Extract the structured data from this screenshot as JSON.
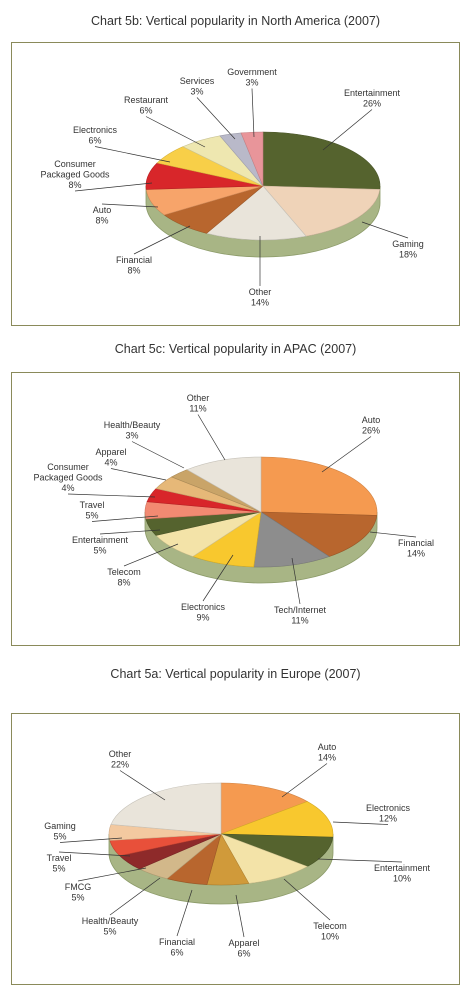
{
  "chart_data": [
    {
      "type": "pie",
      "title": "Chart 5b: Vertical popularity in North America (2007)",
      "series": [
        {
          "values": [
            26,
            18,
            14,
            8,
            8,
            8,
            6,
            6,
            3,
            3
          ]
        }
      ],
      "categories": [
        "Entertainment",
        "Gaming",
        "Other",
        "Financial",
        "Auto",
        "Consumer Packaged Goods",
        "Electronics",
        "Restaurant",
        "Services",
        "Government"
      ],
      "labels": [
        {
          "lines": [
            "Entertainment",
            "26%"
          ]
        },
        {
          "lines": [
            "Gaming",
            "18%"
          ]
        },
        {
          "lines": [
            "Other",
            "14%"
          ]
        },
        {
          "lines": [
            "Financial",
            "8%"
          ]
        },
        {
          "lines": [
            "Auto",
            "8%"
          ]
        },
        {
          "lines": [
            "Consumer",
            "Packaged Goods",
            "8%"
          ]
        },
        {
          "lines": [
            "Electronics",
            "6%"
          ]
        },
        {
          "lines": [
            "Restaurant",
            "6%"
          ]
        },
        {
          "lines": [
            "Services",
            "3%"
          ]
        },
        {
          "lines": [
            "Government",
            "3%"
          ]
        }
      ],
      "colors": [
        "#55632e",
        "#efd3b8",
        "#e9e4da",
        "#b8662e",
        "#f7a46a",
        "#d8262a",
        "#f8cf48",
        "#eee7b0",
        "#b9b9c9",
        "#e8959a"
      ]
    },
    {
      "type": "pie",
      "title": "Chart 5c: Vertical popularity in APAC (2007)",
      "series": [
        {
          "values": [
            26,
            14,
            11,
            9,
            8,
            5,
            5,
            4,
            4,
            3,
            11
          ]
        }
      ],
      "categories": [
        "Auto",
        "Financial",
        "Tech/Internet",
        "Electronics",
        "Telecom",
        "Entertainment",
        "Travel",
        "Consumer Packaged Goods",
        "Apparel",
        "Health/Beauty",
        "Other"
      ],
      "labels": [
        {
          "lines": [
            "Auto",
            "26%"
          ]
        },
        {
          "lines": [
            "Financial",
            "14%"
          ]
        },
        {
          "lines": [
            "Tech/Internet",
            "11%"
          ]
        },
        {
          "lines": [
            "Electronics",
            "9%"
          ]
        },
        {
          "lines": [
            "Telecom",
            "8%"
          ]
        },
        {
          "lines": [
            "Entertainment",
            "5%"
          ]
        },
        {
          "lines": [
            "Travel",
            "5%"
          ]
        },
        {
          "lines": [
            "Consumer",
            "Packaged Goods",
            "4%"
          ]
        },
        {
          "lines": [
            "Apparel",
            "4%"
          ]
        },
        {
          "lines": [
            "Health/Beauty",
            "3%"
          ]
        },
        {
          "lines": [
            "Other",
            "11%"
          ]
        }
      ],
      "colors": [
        "#f59a50",
        "#b8662e",
        "#8d8d8d",
        "#f8c82e",
        "#f3e3a8",
        "#55632e",
        "#f28a72",
        "#d8262a",
        "#e6b878",
        "#c9a468",
        "#e9e4da"
      ]
    },
    {
      "type": "pie",
      "title": "Chart 5a: Vertical popularity in Europe (2007)",
      "series": [
        {
          "values": [
            14,
            12,
            10,
            10,
            6,
            6,
            5,
            5,
            5,
            5,
            22
          ]
        }
      ],
      "categories": [
        "Auto",
        "Electronics",
        "Entertainment",
        "Telecom",
        "Apparel",
        "Financial",
        "Health/Beauty",
        "FMCG",
        "Travel",
        "Gaming",
        "Other"
      ],
      "labels": [
        {
          "lines": [
            "Auto",
            "14%"
          ]
        },
        {
          "lines": [
            "Electronics",
            "12%"
          ]
        },
        {
          "lines": [
            "Entertainment",
            "10%"
          ]
        },
        {
          "lines": [
            "Telecom",
            "10%"
          ]
        },
        {
          "lines": [
            "Apparel",
            "6%"
          ]
        },
        {
          "lines": [
            "Financial",
            "6%"
          ]
        },
        {
          "lines": [
            "Health/Beauty",
            "5%"
          ]
        },
        {
          "lines": [
            "FMCG",
            "5%"
          ]
        },
        {
          "lines": [
            "Travel",
            "5%"
          ]
        },
        {
          "lines": [
            "Gaming",
            "5%"
          ]
        },
        {
          "lines": [
            "Other",
            "22%"
          ]
        }
      ],
      "colors": [
        "#f59a50",
        "#f8c82e",
        "#55632e",
        "#f3e3a8",
        "#d09a3a",
        "#b8662e",
        "#d2b88a",
        "#8e2a2a",
        "#e8503a",
        "#f3c9a0",
        "#e9e4da"
      ]
    }
  ]
}
